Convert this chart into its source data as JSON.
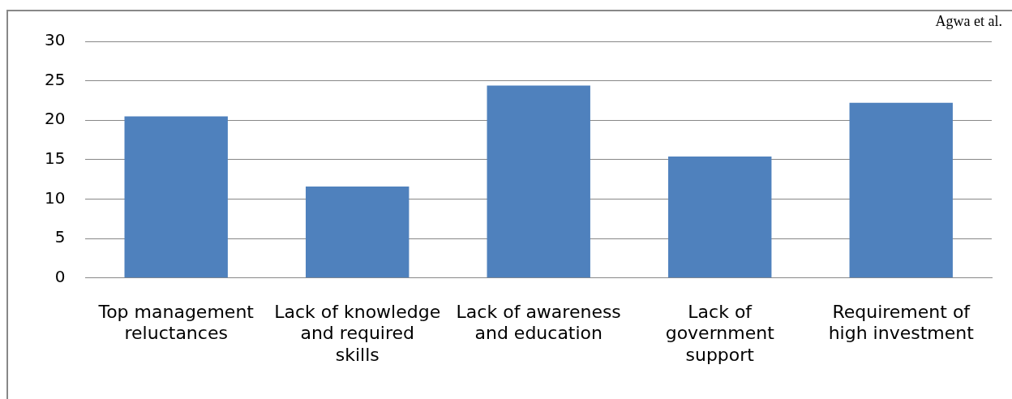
{
  "chart_data": {
    "type": "bar",
    "categories": [
      "Top management reluctances",
      "Lack of knowledge and required skills",
      "Lack of awareness and education",
      "Lack of government support",
      "Requirement of high investment"
    ],
    "values": [
      20.5,
      11.6,
      24.4,
      15.4,
      22.2
    ],
    "color": "#4f81bd",
    "ylim": [
      0,
      30
    ],
    "yticks": [
      0,
      5,
      10,
      15,
      20,
      25,
      30
    ],
    "grid": "y",
    "legend": false,
    "annotations": [
      "Agwa et al."
    ]
  }
}
